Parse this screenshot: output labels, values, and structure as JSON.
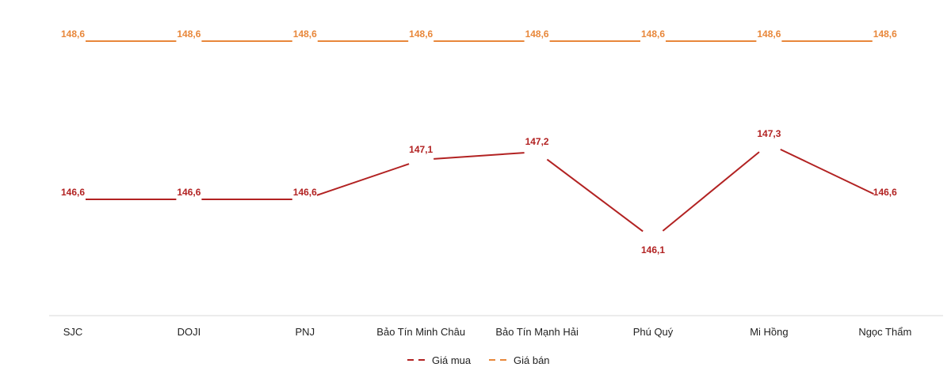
{
  "chart_data": {
    "type": "line",
    "title": "",
    "xlabel": "",
    "ylabel": "",
    "categories": [
      "SJC",
      "DOJI",
      "PNJ",
      "Bảo Tín Minh Châu",
      "Bảo Tín Mạnh Hải",
      "Phú Quý",
      "Mi Hồng",
      "Ngọc Thẩm"
    ],
    "series": [
      {
        "name": "Giá mua",
        "color": "#b22222",
        "values": [
          146.6,
          146.6,
          146.6,
          147.1,
          147.2,
          146.1,
          147.3,
          146.6
        ],
        "labels": [
          "146,6",
          "146,6",
          "146,6",
          "147,1",
          "147,2",
          "146,1",
          "147,3",
          "146,6"
        ]
      },
      {
        "name": "Giá bán",
        "color": "#e8873a",
        "values": [
          148.6,
          148.6,
          148.6,
          148.6,
          148.6,
          148.6,
          148.6,
          148.6
        ],
        "labels": [
          "148,6",
          "148,6",
          "148,6",
          "148,6",
          "148,6",
          "148,6",
          "148,6",
          "148,6"
        ]
      }
    ],
    "ylim": [
      145.0,
      149.0
    ],
    "grid": false,
    "legend_position": "bottom"
  }
}
